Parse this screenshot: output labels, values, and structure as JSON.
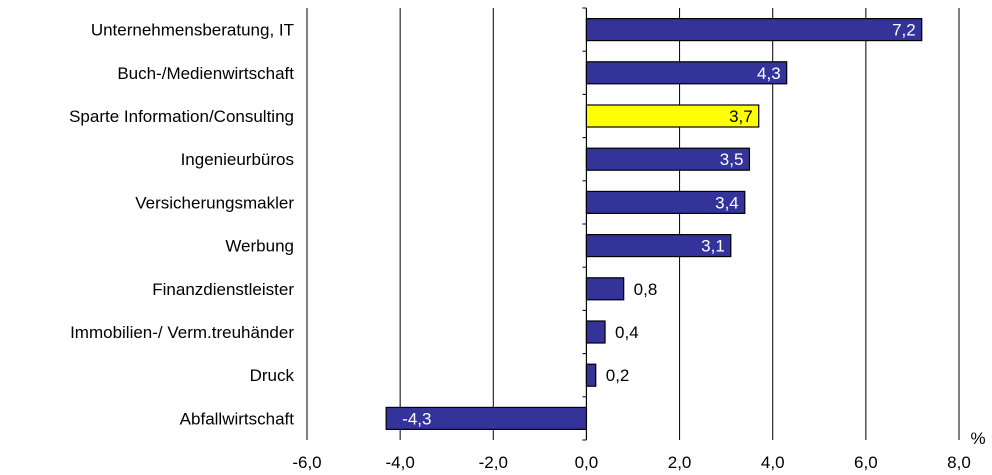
{
  "chart_data": {
    "type": "bar",
    "orientation": "horizontal",
    "categories": [
      "Unternehmensberatung, IT",
      "Buch-/Medienwirtschaft",
      "Sparte Information/Consulting",
      "Ingenieurbüros",
      "Versicherungsmakler",
      "Werbung",
      "Finanzdienstleister",
      "Immobilien-/ Verm.treuhänder",
      "Druck",
      "Abfallwirtschaft"
    ],
    "values": [
      7.2,
      4.3,
      3.7,
      3.5,
      3.4,
      3.1,
      0.8,
      0.4,
      0.2,
      -4.3
    ],
    "value_labels": [
      "7,2",
      "4,3",
      "3,7",
      "3,5",
      "3,4",
      "3,1",
      "0,8",
      "0,4",
      "0,2",
      "-4,3"
    ],
    "highlight_index": 2,
    "xlim": [
      -6,
      8
    ],
    "xticks": [
      -6,
      -4,
      -2,
      0,
      2,
      4,
      6,
      8
    ],
    "xtick_labels": [
      "-6,0",
      "-4,0",
      "-2,0",
      "0,0",
      "2,0",
      "4,0",
      "6,0",
      "8,0"
    ],
    "unit_label": "%",
    "grid": true,
    "colors": {
      "bar": "#333399",
      "highlight": "#ffff00",
      "stroke": "#000000",
      "label_inside": "#ffffff",
      "label_highlight": "#000000",
      "label_outside": "#000000"
    }
  }
}
